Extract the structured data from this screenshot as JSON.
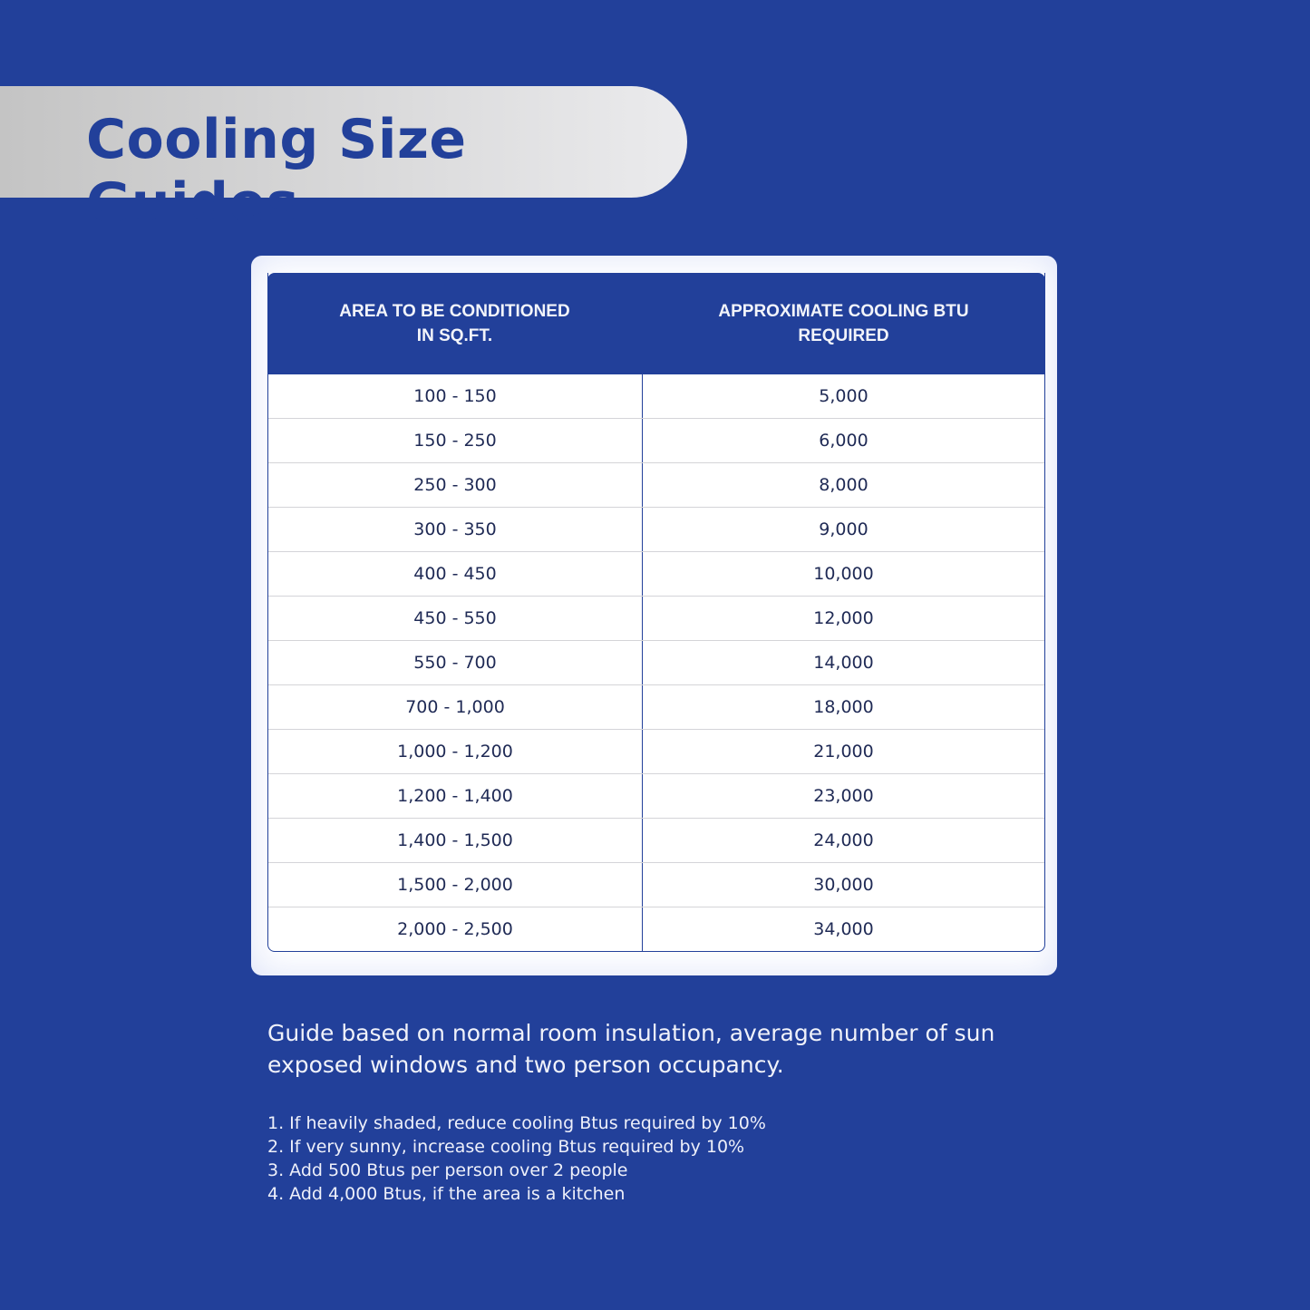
{
  "title": "Cooling Size Guides",
  "table": {
    "headers": [
      "AREA TO BE CONDITIONED\nIN SQ.FT.",
      "APPROXIMATE COOLING BTU\nREQUIRED"
    ],
    "rows": [
      [
        "100 - 150",
        "5,000"
      ],
      [
        "150 - 250",
        "6,000"
      ],
      [
        "250 - 300",
        "8,000"
      ],
      [
        "300 - 350",
        "9,000"
      ],
      [
        "400 - 450",
        "10,000"
      ],
      [
        "450 - 550",
        "12,000"
      ],
      [
        "550 - 700",
        "14,000"
      ],
      [
        "700 - 1,000",
        "18,000"
      ],
      [
        "1,000 - 1,200",
        "21,000"
      ],
      [
        "1,200 - 1,400",
        "23,000"
      ],
      [
        "1,400 - 1,500",
        "24,000"
      ],
      [
        "1,500 - 2,000",
        "30,000"
      ],
      [
        "2,000 - 2,500",
        "34,000"
      ]
    ]
  },
  "note": "Guide based on normal room insulation, average number of sun exposed windows and two person occupancy.",
  "adjustments": [
    "1.  If heavily shaded, reduce cooling Btus required by 10%",
    "2. If very sunny, increase cooling Btus required by 10%",
    "3. Add 500 Btus per person over 2 people",
    "4. Add 4,000 Btus, if the area is a kitchen"
  ],
  "colors": {
    "background": "#22409a",
    "header": "#22409a",
    "banner": "#d9d9d9"
  }
}
